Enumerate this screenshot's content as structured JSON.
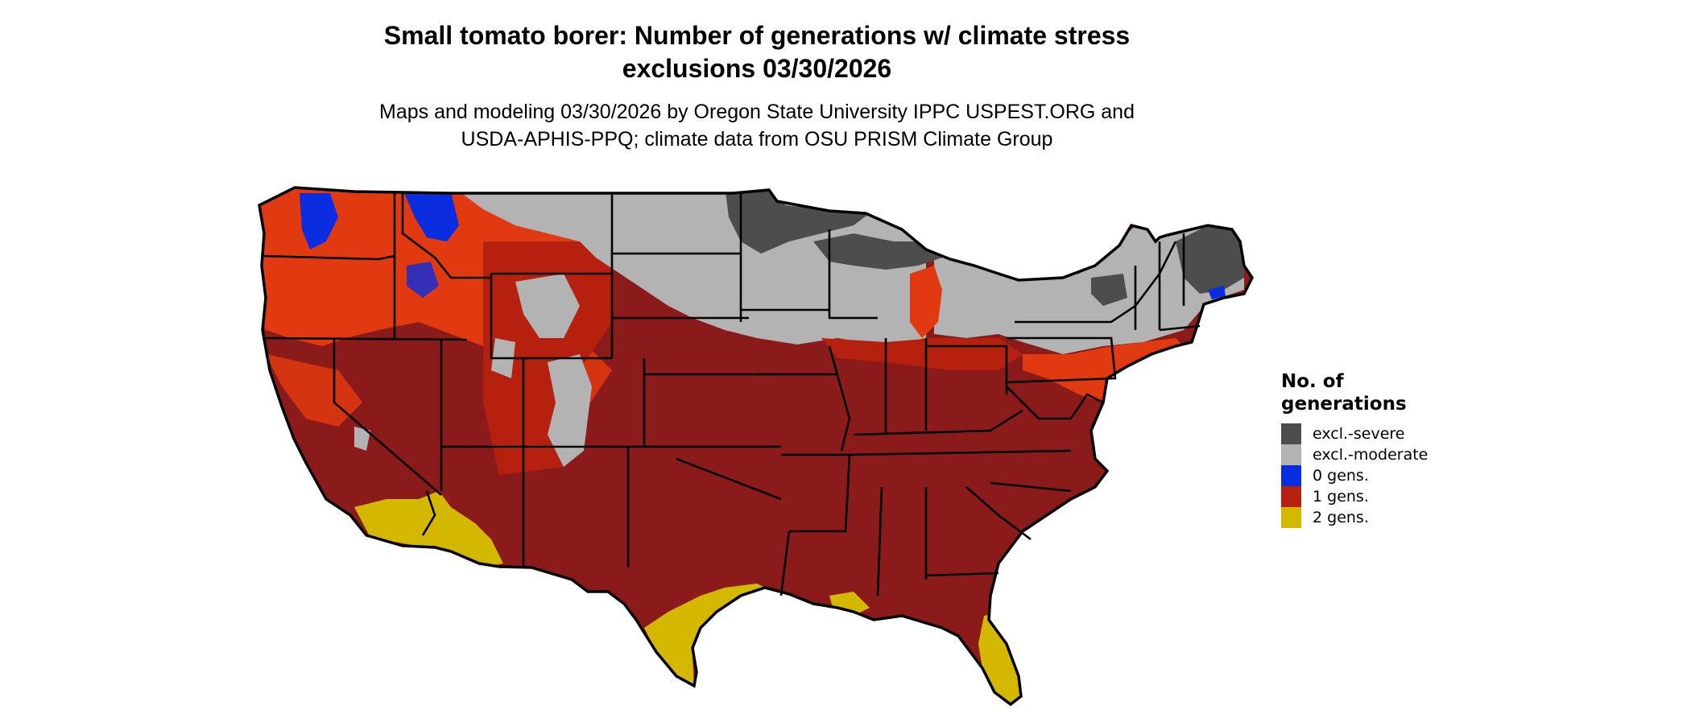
{
  "title_line1": "Small tomato borer: Number of generations w/ climate stress",
  "title_line2": "exclusions 03/30/2026",
  "subtitle_line1": "Maps and modeling 03/30/2026 by Oregon State University IPPC USPEST.ORG and",
  "subtitle_line2": "USDA-APHIS-PPQ; climate data from OSU PRISM Climate Group",
  "legend": {
    "title_line1": "No. of",
    "title_line2": "generations",
    "items": [
      {
        "label": "excl.-severe",
        "color": "#4d4d4d"
      },
      {
        "label": "excl.-moderate",
        "color": "#b3b3b3"
      },
      {
        "label": "0 gens.",
        "color": "#0a2de0"
      },
      {
        "label": "1 gens.",
        "color": "#b5200f"
      },
      {
        "label": "2 gens.",
        "color": "#d4b800"
      }
    ]
  },
  "map_colors": {
    "dark_red": "#8b1a1a",
    "orange_red": "#e23a10",
    "red": "#b5200f",
    "light_gray": "#b3b3b3",
    "dark_gray": "#4d4d4d",
    "yellow": "#d4b800",
    "blue": "#0a2de0",
    "border": "#000000"
  }
}
